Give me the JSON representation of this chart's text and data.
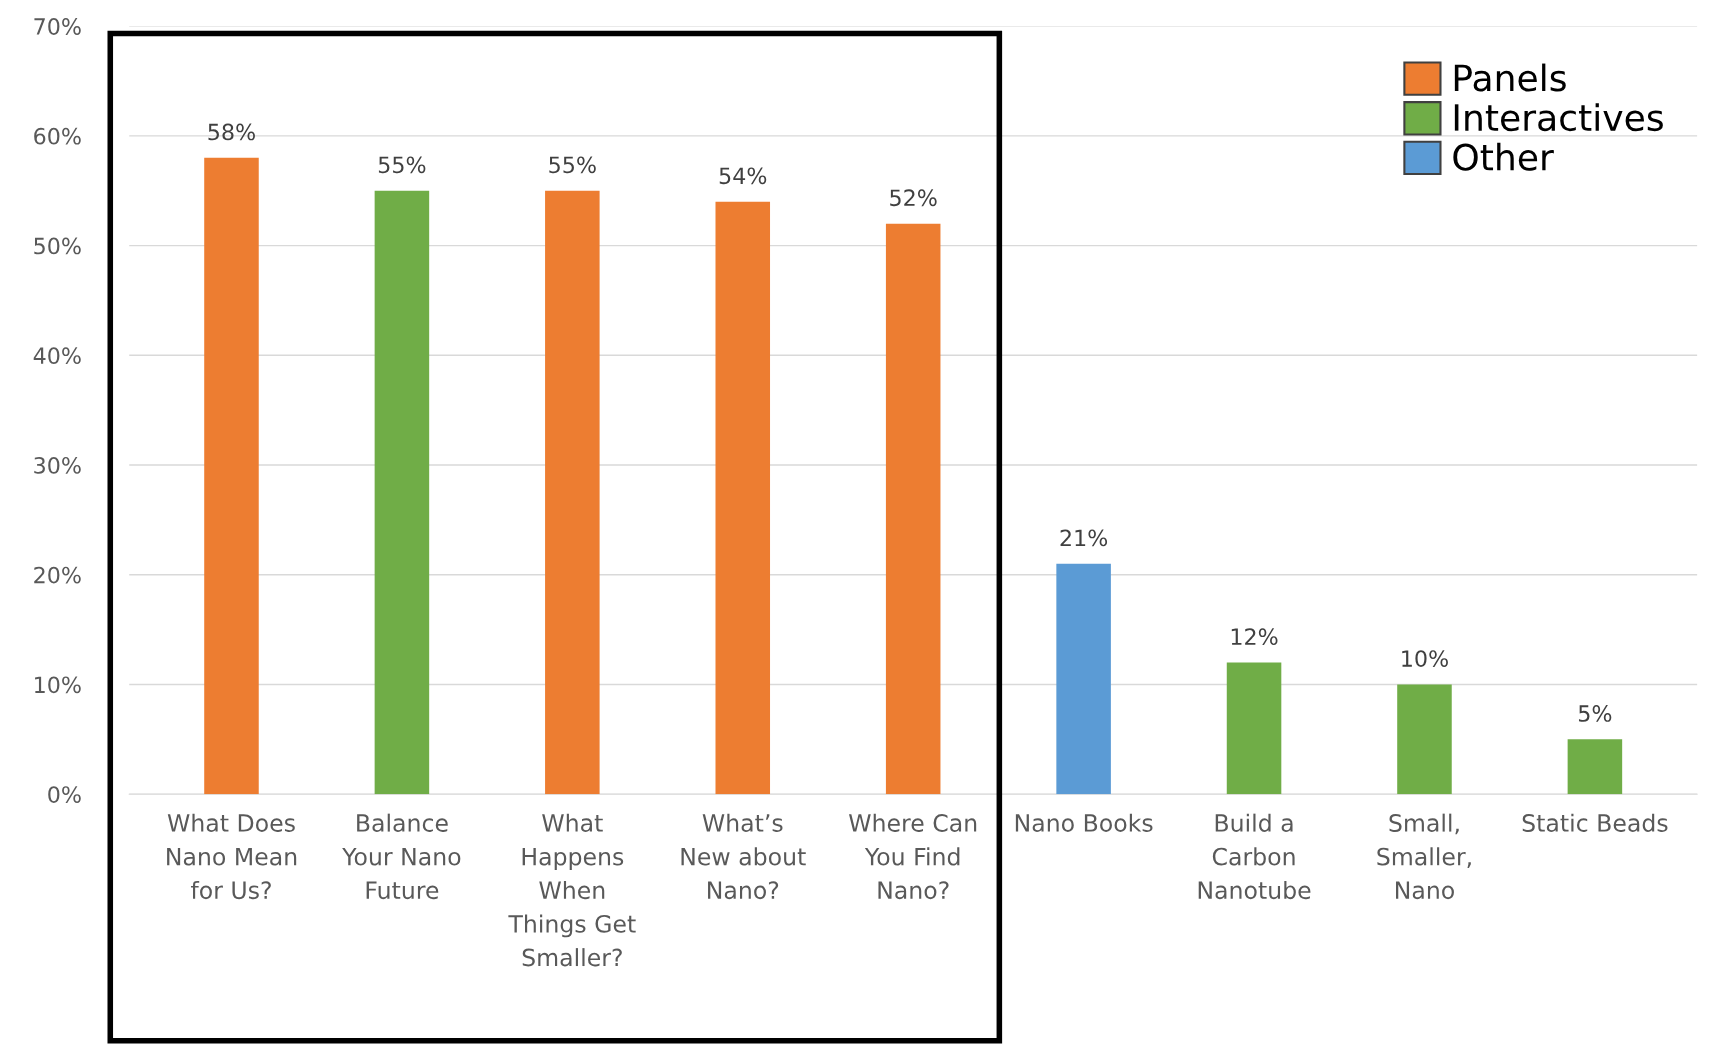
{
  "chart_data": {
    "type": "bar",
    "categories": [
      "What Does\nNano Mean\nfor Us?",
      "Balance\nYour Nano\nFuture",
      "What\nHappens\nWhen\nThings Get\nSmaller?",
      "What’s\nNew about\nNano?",
      "Where Can\nYou Find\nNano?",
      "Nano Books",
      "Build a\nCarbon\nNanotube",
      "Small,\nSmaller,\nNano",
      "Static Beads"
    ],
    "series": [
      {
        "name": "Panels",
        "color": "#ed7d31",
        "values": [
          58,
          null,
          55,
          54,
          52,
          null,
          null,
          null,
          null
        ]
      },
      {
        "name": "Interactives",
        "color": "#70ad47",
        "values": [
          null,
          55,
          null,
          null,
          null,
          null,
          12,
          10,
          5
        ]
      },
      {
        "name": "Other",
        "color": "#5b9bd5",
        "values": [
          null,
          null,
          null,
          null,
          null,
          21,
          null,
          null,
          null
        ]
      }
    ],
    "ylim": [
      0,
      70
    ],
    "yticks": [
      {
        "value": 0,
        "label": "0%"
      },
      {
        "value": 10,
        "label": "10%"
      },
      {
        "value": 20,
        "label": "20%"
      },
      {
        "value": 30,
        "label": "30%"
      },
      {
        "value": 40,
        "label": "40%"
      },
      {
        "value": 50,
        "label": "50%"
      },
      {
        "value": 60,
        "label": "60%"
      },
      {
        "value": 70,
        "label": "70%"
      }
    ],
    "value_labels": [
      "58%",
      "55%",
      "55%",
      "54%",
      "52%",
      "21%",
      "12%",
      "10%",
      "5%"
    ],
    "grid": "y",
    "legend": "top right"
  }
}
